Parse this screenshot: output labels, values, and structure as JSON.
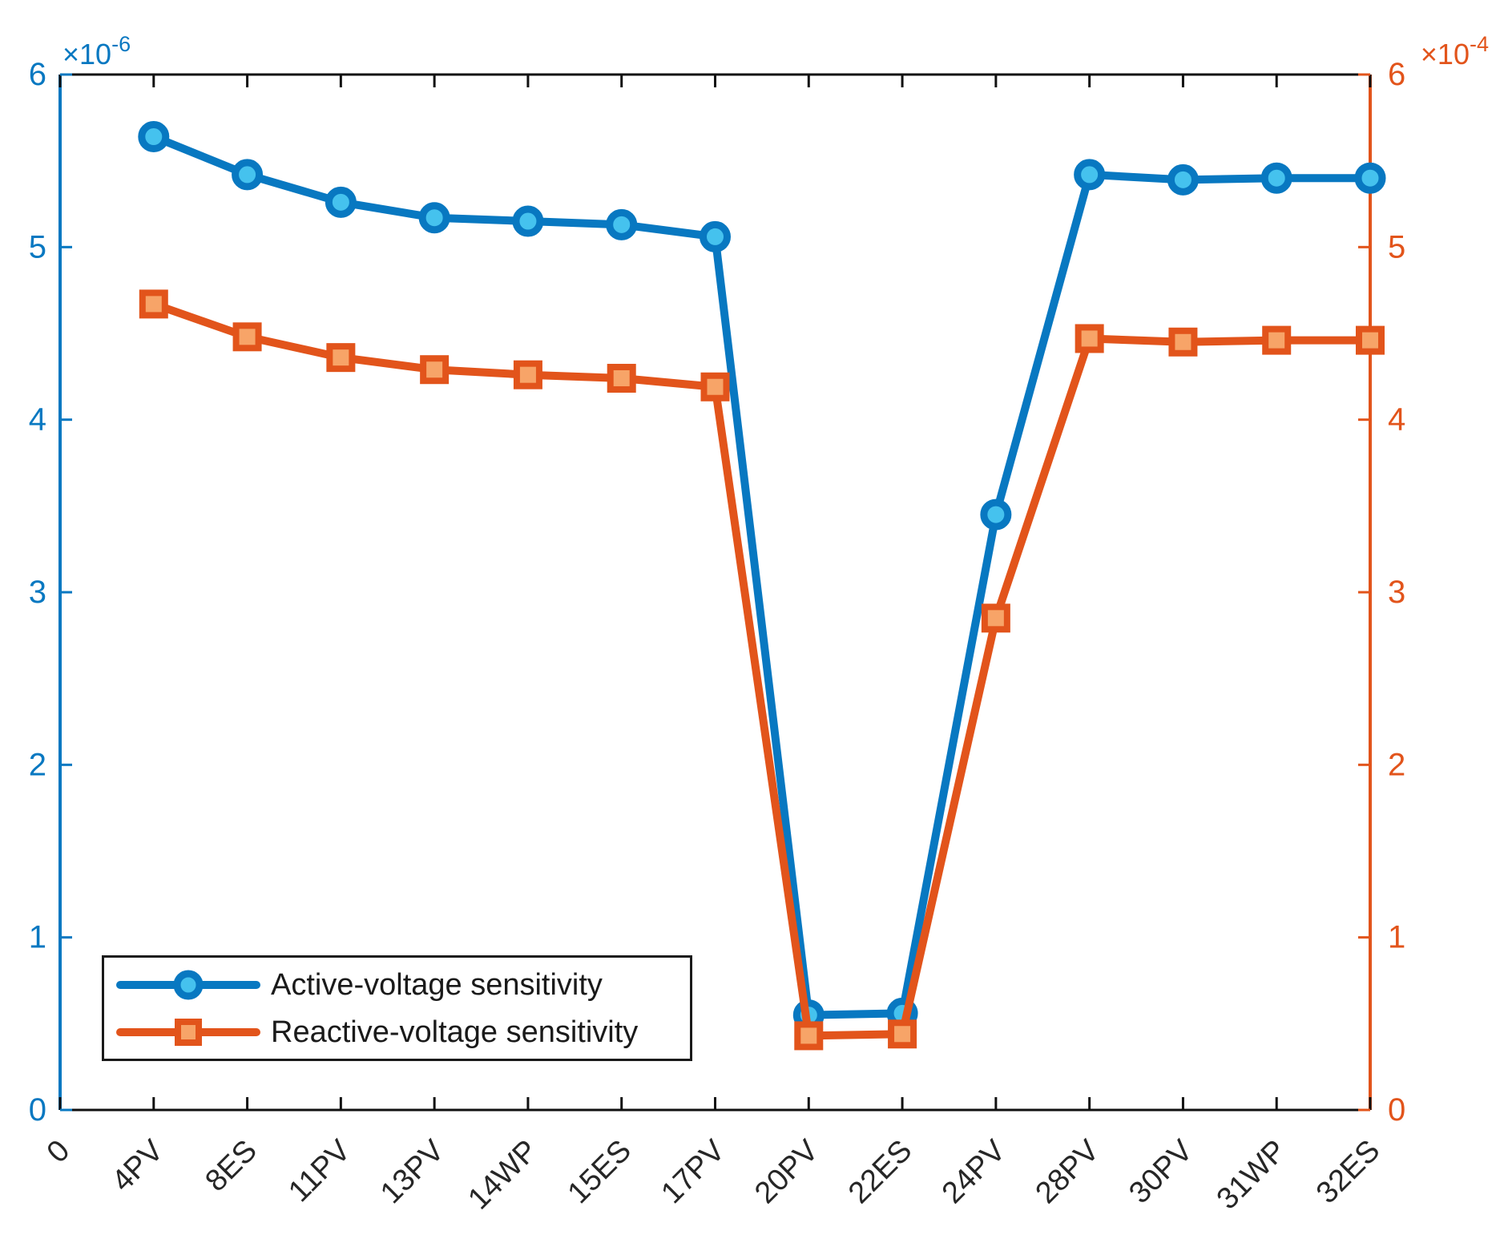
{
  "chart_data": {
    "type": "line",
    "title": "",
    "xlabel": "",
    "ylabel_left": "Active-voltage sensitivity",
    "ylabel_right": "Reactive-voltage sensitivity",
    "categories": [
      "0",
      "4PV",
      "8ES",
      "11PV",
      "13PV",
      "14WP",
      "15ES",
      "17PV",
      "20PV",
      "22ES",
      "24PV",
      "28PV",
      "30PV",
      "31WP",
      "32ES"
    ],
    "series_start_category_index": 1,
    "series": [
      {
        "name": "Active-voltage sensitivity",
        "axis": "left",
        "marker": "circle",
        "color": "#0878c1",
        "marker_fill": "#45c2ee",
        "scale": "1e-6",
        "x": [
          "4PV",
          "8ES",
          "11PV",
          "13PV",
          "14WP",
          "15ES",
          "17PV",
          "20PV",
          "22ES",
          "24PV",
          "28PV",
          "30PV",
          "31WP",
          "32ES"
        ],
        "values": [
          5.64,
          5.42,
          5.26,
          5.17,
          5.15,
          5.13,
          5.06,
          0.55,
          0.56,
          3.45,
          5.42,
          5.39,
          5.4,
          5.4
        ]
      },
      {
        "name": "Reactive-voltage sensitivity",
        "axis": "right",
        "marker": "square",
        "color": "#e2541b",
        "marker_fill": "#f7a468",
        "scale": "1e-4",
        "x": [
          "4PV",
          "8ES",
          "11PV",
          "13PV",
          "14WP",
          "15ES",
          "17PV",
          "20PV",
          "22ES",
          "24PV",
          "28PV",
          "30PV",
          "31WP",
          "32ES"
        ],
        "values": [
          4.67,
          4.48,
          4.36,
          4.29,
          4.26,
          4.24,
          4.19,
          0.43,
          0.44,
          2.85,
          4.47,
          4.45,
          4.46,
          4.46
        ]
      }
    ],
    "left_axis": {
      "color": "#0878c1",
      "range": [
        0,
        6
      ],
      "ticks": [
        0,
        1,
        2,
        3,
        4,
        5,
        6
      ],
      "exponent_mantissa": "×10",
      "exponent_power": "-6"
    },
    "right_axis": {
      "color": "#e2541b",
      "range": [
        0,
        6
      ],
      "ticks": [
        0,
        1,
        2,
        3,
        4,
        5,
        6
      ],
      "exponent_mantissa": "×10",
      "exponent_power": "-4"
    },
    "x_axis": {
      "color": "#1a1a1a",
      "tick_label_color": "#262626",
      "tick_label_rotation_deg": -45
    },
    "legend": {
      "position": "bottom-left",
      "entries": [
        {
          "label": "Active-voltage sensitivity"
        },
        {
          "label": "Reactive-voltage sensitivity"
        }
      ]
    },
    "grid": false,
    "background": "#ffffff"
  }
}
